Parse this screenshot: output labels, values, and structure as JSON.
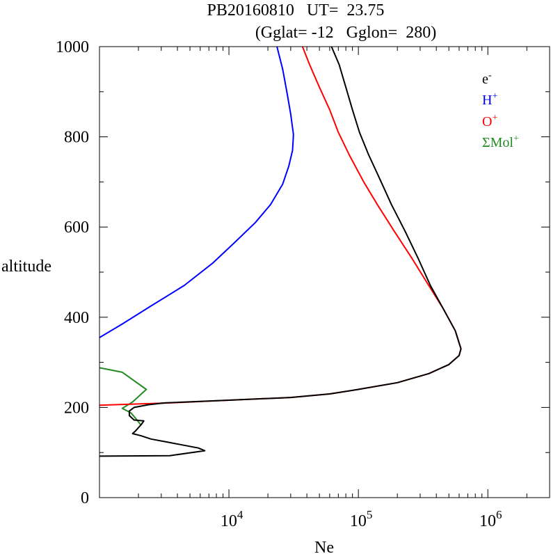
{
  "chart_data": {
    "type": "line",
    "title_line1": "PB20160810   UT=  23.75",
    "title_line2": "(Gglat= -12   Gglon=  280)",
    "xlabel": "Ne",
    "ylabel": "altitude",
    "xscale": "log",
    "xlim": [
      1000,
      3000000
    ],
    "ylim": [
      0,
      1000
    ],
    "yticks": [
      0,
      200,
      400,
      600,
      800,
      1000
    ],
    "ytick_labels": [
      "0",
      "200",
      "400",
      "600",
      "800",
      "1000"
    ],
    "xticks": [
      10000,
      100000,
      1000000
    ],
    "xtick_labels": [
      {
        "base": "10",
        "exp": "4"
      },
      {
        "base": "10",
        "exp": "5"
      },
      {
        "base": "10",
        "exp": "6"
      }
    ],
    "legend_position": "top-right",
    "legend": [
      {
        "base": "e",
        "sup": "-",
        "color": "#000000"
      },
      {
        "base": "H",
        "sup": "+",
        "color": "#0000ff"
      },
      {
        "base": "O",
        "sup": "+",
        "color": "#ff0000"
      },
      {
        "base": "ΣMol",
        "sup": "+",
        "color": "#228b22"
      }
    ],
    "series": [
      {
        "name": "ΣMol+",
        "color": "#228b22",
        "points": [
          [
            1000,
            288
          ],
          [
            1500,
            278
          ],
          [
            2300,
            240
          ],
          [
            1800,
            212
          ],
          [
            1500,
            198
          ],
          [
            1750,
            188
          ],
          [
            1950,
            172
          ],
          [
            2100,
            160
          ]
        ]
      },
      {
        "name": "H+",
        "color": "#0000ff",
        "points": [
          [
            1000,
            355
          ],
          [
            1500,
            385
          ],
          [
            2500,
            425
          ],
          [
            4500,
            470
          ],
          [
            7500,
            520
          ],
          [
            11000,
            565
          ],
          [
            16000,
            610
          ],
          [
            21000,
            650
          ],
          [
            26000,
            695
          ],
          [
            29000,
            735
          ],
          [
            31000,
            770
          ],
          [
            31500,
            805
          ],
          [
            30000,
            850
          ],
          [
            28000,
            900
          ],
          [
            26000,
            950
          ],
          [
            23500,
            1000
          ]
        ]
      },
      {
        "name": "O+",
        "color": "#ff0000",
        "points": [
          [
            1000,
            205
          ],
          [
            3500,
            210
          ],
          [
            10000,
            216
          ],
          [
            30000,
            222
          ],
          [
            60000,
            230
          ],
          [
            100000,
            240
          ],
          [
            200000,
            255
          ],
          [
            350000,
            275
          ],
          [
            500000,
            295
          ],
          [
            600000,
            315
          ],
          [
            620000,
            330
          ],
          [
            560000,
            370
          ],
          [
            450000,
            420
          ],
          [
            350000,
            470
          ],
          [
            260000,
            530
          ],
          [
            190000,
            590
          ],
          [
            140000,
            650
          ],
          [
            110000,
            700
          ],
          [
            85000,
            760
          ],
          [
            70000,
            810
          ],
          [
            60000,
            860
          ],
          [
            50000,
            910
          ],
          [
            42000,
            960
          ],
          [
            37000,
            1000
          ]
        ]
      },
      {
        "name": "e-",
        "color": "#000000",
        "points": [
          [
            1000,
            92
          ],
          [
            3500,
            93
          ],
          [
            6500,
            104
          ],
          [
            5800,
            110
          ],
          [
            3500,
            122
          ],
          [
            2500,
            130
          ],
          [
            2100,
            137
          ],
          [
            1800,
            142
          ],
          [
            1900,
            148
          ],
          [
            2100,
            162
          ],
          [
            2200,
            170
          ],
          [
            1850,
            172
          ],
          [
            1700,
            182
          ],
          [
            1700,
            192
          ],
          [
            1850,
            200
          ],
          [
            2400,
            206
          ],
          [
            3200,
            210
          ],
          [
            10000,
            216
          ],
          [
            30000,
            222
          ],
          [
            60000,
            230
          ],
          [
            100000,
            240
          ],
          [
            200000,
            255
          ],
          [
            350000,
            275
          ],
          [
            500000,
            295
          ],
          [
            600000,
            315
          ],
          [
            620000,
            330
          ],
          [
            560000,
            370
          ],
          [
            450000,
            420
          ],
          [
            360000,
            470
          ],
          [
            290000,
            530
          ],
          [
            230000,
            590
          ],
          [
            180000,
            650
          ],
          [
            150000,
            700
          ],
          [
            120000,
            760
          ],
          [
            102000,
            810
          ],
          [
            90000,
            860
          ],
          [
            80000,
            910
          ],
          [
            71000,
            960
          ],
          [
            62000,
            1000
          ]
        ]
      }
    ]
  }
}
